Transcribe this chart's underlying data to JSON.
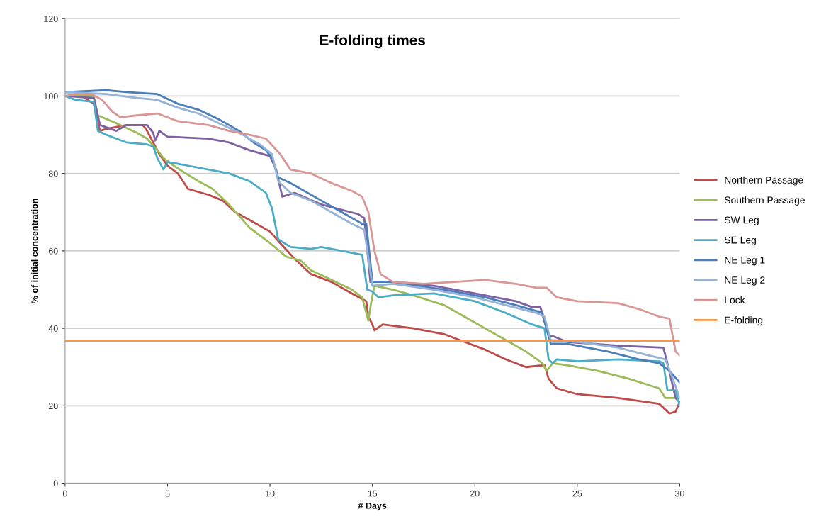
{
  "chart_data": {
    "type": "line",
    "title": "E-folding times",
    "xlabel": "# Days",
    "ylabel": "% of initial concentration",
    "xlim": [
      0,
      30
    ],
    "xticks": [
      0,
      5,
      10,
      15,
      20,
      25,
      30
    ],
    "ylim": [
      0,
      120
    ],
    "yticks": [
      0,
      20,
      40,
      60,
      80,
      100,
      120
    ],
    "grid": "y",
    "legend": "right",
    "marker": "none",
    "line_style": "solid",
    "series": [
      {
        "name": "Northern Passage",
        "color": "#be4b48",
        "x": [
          0,
          0.8,
          1.4,
          1.7,
          2,
          3,
          3.8,
          4.0,
          4.3,
          4.6,
          5,
          5.5,
          6,
          7,
          7.7,
          8.3,
          9,
          10,
          10.5,
          11.2,
          12,
          13,
          14,
          14.7,
          14.8,
          15,
          15.1,
          15.5,
          17,
          18.5,
          19.5,
          20.5,
          21.5,
          22.5,
          23.4,
          23.6,
          24,
          25,
          27,
          29,
          29.5,
          29.8,
          30
        ],
        "values": [
          100,
          100,
          98,
          91,
          91.5,
          92.5,
          92.5,
          91,
          88,
          85,
          82,
          80,
          76,
          74.5,
          73,
          70,
          68,
          65,
          62,
          58,
          54,
          52,
          49,
          47,
          43,
          41,
          39.5,
          41,
          40,
          38.5,
          36.5,
          34.5,
          32,
          30,
          30.5,
          27,
          24.5,
          23,
          22,
          20.5,
          18,
          18.5,
          21
        ]
      },
      {
        "name": "Southern Passage",
        "color": "#9bbb59",
        "x": [
          0,
          0.8,
          1.4,
          1.6,
          2.5,
          3.5,
          4,
          4.5,
          4.8,
          5.3,
          6.5,
          7.2,
          8,
          9,
          10,
          10.8,
          11.5,
          12,
          13,
          14,
          14.5,
          14.8,
          14.95,
          15.1,
          16,
          17,
          18.5,
          19.5,
          20.5,
          21.5,
          22.5,
          23.3,
          23.5,
          23.8,
          24.5,
          26,
          27.5,
          29,
          29.3,
          29.8,
          30
        ],
        "values": [
          100,
          100,
          100,
          95,
          93,
          90.5,
          89,
          86,
          84,
          82,
          78,
          76,
          72,
          66,
          62,
          58.5,
          57.5,
          55,
          52.5,
          50,
          48,
          42,
          47,
          51,
          50,
          48.5,
          46,
          43,
          40,
          37,
          34,
          31,
          29,
          31,
          30.5,
          29,
          27,
          24.5,
          22,
          22,
          21
        ]
      },
      {
        "name": "SW Leg",
        "color": "#7f60a2",
        "x": [
          0,
          1.4,
          1.7,
          2.5,
          3,
          4,
          4.3,
          4.4,
          4.6,
          5,
          7,
          8,
          9,
          10,
          10.3,
          10.6,
          11.2,
          12.5,
          14.3,
          14.6,
          14.9,
          16,
          18,
          20,
          22,
          22.8,
          23.2,
          23.6,
          23.8,
          24.5,
          27,
          29.2,
          29.4,
          29.8,
          30
        ],
        "values": [
          100,
          99.5,
          92.5,
          91,
          92.5,
          92.5,
          90.5,
          88.5,
          91,
          89.5,
          89,
          88,
          86,
          84.5,
          81,
          74,
          75,
          72,
          69.5,
          68.5,
          52,
          52,
          51,
          49,
          47,
          45.5,
          45.5,
          38,
          38,
          36.5,
          35.5,
          35,
          31,
          22,
          21
        ]
      },
      {
        "name": "SE Leg",
        "color": "#4bacc6",
        "x": [
          0,
          0.5,
          1.4,
          1.6,
          2,
          3,
          4,
          4.3,
          4.5,
          4.8,
          5,
          6,
          7,
          8,
          9,
          9.8,
          10.1,
          10.4,
          11,
          12,
          12.5,
          13.5,
          14.5,
          14.75,
          15,
          15.3,
          16,
          18,
          20,
          21.5,
          22.8,
          23.4,
          23.6,
          23.8,
          24,
          25,
          27,
          29,
          29.2,
          29.4,
          29.8,
          30
        ],
        "values": [
          100,
          99,
          98.5,
          91,
          90,
          88,
          87.5,
          87,
          84,
          81,
          83,
          82,
          81,
          80,
          78,
          75,
          71,
          63,
          61,
          60.5,
          61,
          60,
          59,
          50,
          49.5,
          48,
          48.5,
          49,
          47,
          44,
          41,
          40,
          32,
          31,
          32,
          31.5,
          32,
          31.5,
          31,
          24,
          24,
          20
        ]
      },
      {
        "name": "NE Leg 1",
        "color": "#4a7ebb",
        "x": [
          0,
          2,
          3,
          4.5,
          5.5,
          6.5,
          7.5,
          8.5,
          9.2,
          9.8,
          10.1,
          10.4,
          11,
          12.5,
          13.5,
          14.5,
          14.7,
          15,
          16,
          18.5,
          20.5,
          22,
          23,
          23.3,
          23.7,
          24.5,
          26.5,
          28,
          29,
          29.5,
          30
        ],
        "values": [
          101,
          101.5,
          101,
          100.5,
          98,
          96.5,
          94,
          91,
          88,
          86,
          84,
          79,
          77.5,
          73,
          70,
          67,
          67,
          52,
          52,
          50,
          48,
          46,
          44.5,
          44,
          36,
          36,
          34,
          32,
          31,
          29,
          26
        ]
      },
      {
        "name": "NE Leg 2",
        "color": "#95b3d7",
        "x": [
          0,
          2,
          3.5,
          4.5,
          5.5,
          6.5,
          7.5,
          8.5,
          9.5,
          10.1,
          10.4,
          11,
          12,
          13,
          14,
          14.6,
          15,
          16,
          18,
          20,
          21.5,
          23,
          23.4,
          23.7,
          25,
          27,
          28.5,
          29.3,
          29.8,
          30
        ],
        "values": [
          101,
          100.5,
          99.5,
          99,
          97,
          95.5,
          93,
          90.5,
          87.5,
          85,
          78,
          75,
          73,
          70,
          67,
          65.5,
          51,
          51.5,
          50,
          48,
          46,
          44,
          43,
          37,
          36.5,
          35,
          33,
          32,
          25,
          22
        ]
      },
      {
        "name": "Lock",
        "color": "#d99694",
        "x": [
          0,
          0.5,
          1.3,
          1.8,
          2.3,
          2.7,
          3.5,
          4.5,
          5.5,
          7,
          8,
          9,
          9.8,
          10.5,
          11,
          12,
          13,
          14,
          14.5,
          14.8,
          15.1,
          15.4,
          16,
          17.5,
          19,
          20.5,
          22,
          23,
          23.5,
          24,
          25,
          27,
          28,
          29,
          29.5,
          29.8,
          30
        ],
        "values": [
          100,
          100.5,
          100.5,
          99,
          96,
          94.5,
          95,
          95.5,
          93.5,
          92.5,
          91,
          90,
          89,
          85,
          81,
          80,
          77.5,
          75.5,
          74,
          70,
          60,
          54,
          52,
          51.5,
          52,
          52.5,
          51.5,
          50.5,
          50.5,
          48,
          47,
          46.5,
          45,
          43,
          42.5,
          34,
          33
        ]
      },
      {
        "name": "E-folding",
        "color": "#f79646",
        "x": [
          0,
          30
        ],
        "values": [
          36.8,
          36.8
        ]
      }
    ]
  }
}
